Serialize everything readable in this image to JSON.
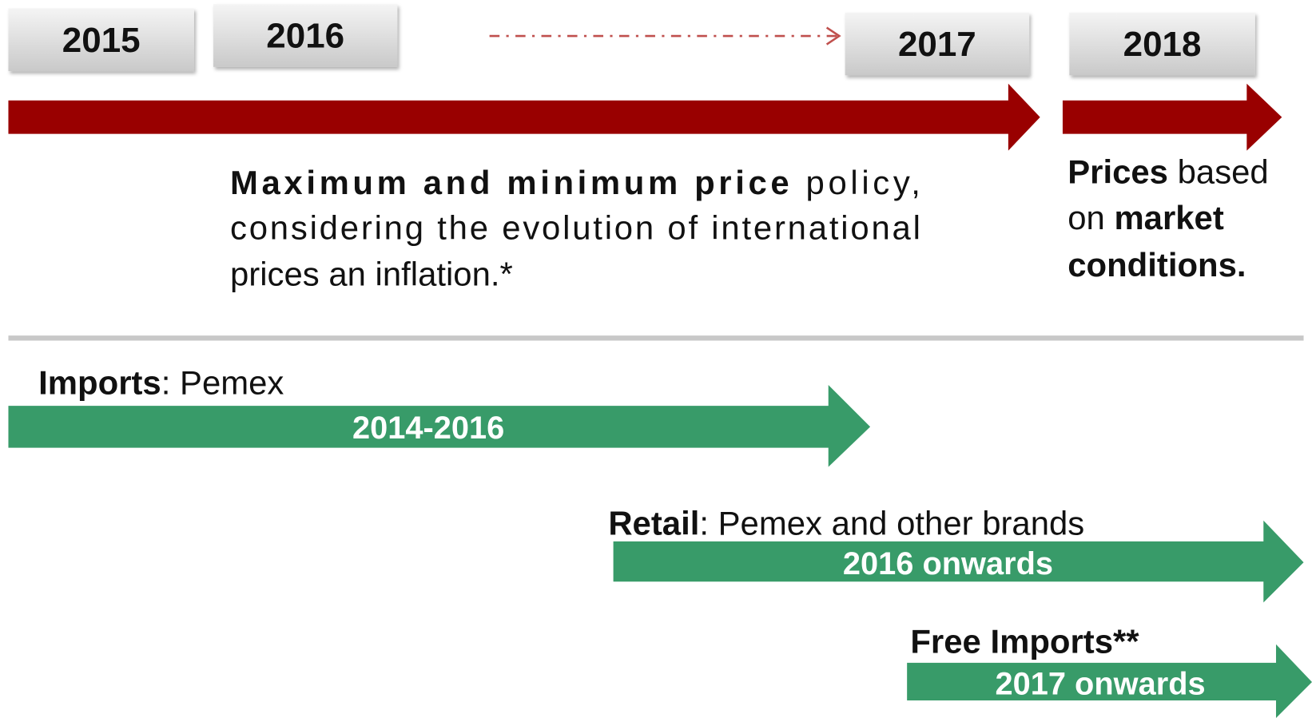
{
  "years": [
    "2015",
    "2016",
    "2017",
    "2018"
  ],
  "policy": {
    "lines": [
      [
        {
          "text": "Maximum and minimum price",
          "bold": true
        },
        {
          "text": " policy,",
          "bold": false
        }
      ],
      [
        {
          "text": "considering the evolution of international",
          "bold": false
        }
      ],
      [
        {
          "text": "prices an inflation.*",
          "bold": false
        }
      ]
    ]
  },
  "market": {
    "lines": [
      [
        {
          "text": "Prices",
          "bold": true
        },
        {
          "text": " based",
          "bold": false
        }
      ],
      [
        {
          "text": "on ",
          "bold": false
        },
        {
          "text": "market",
          "bold": true
        }
      ],
      [
        {
          "text": "conditions.",
          "bold": true
        }
      ]
    ]
  },
  "phases": [
    {
      "title": "Imports",
      "detail": ": Pemex",
      "period": "2014-2016"
    },
    {
      "title": "Retail",
      "detail": ": Pemex and other brands",
      "period": "2016 onwards"
    },
    {
      "title": "Free Imports**",
      "detail": null,
      "period": "2017 onwards"
    }
  ]
}
